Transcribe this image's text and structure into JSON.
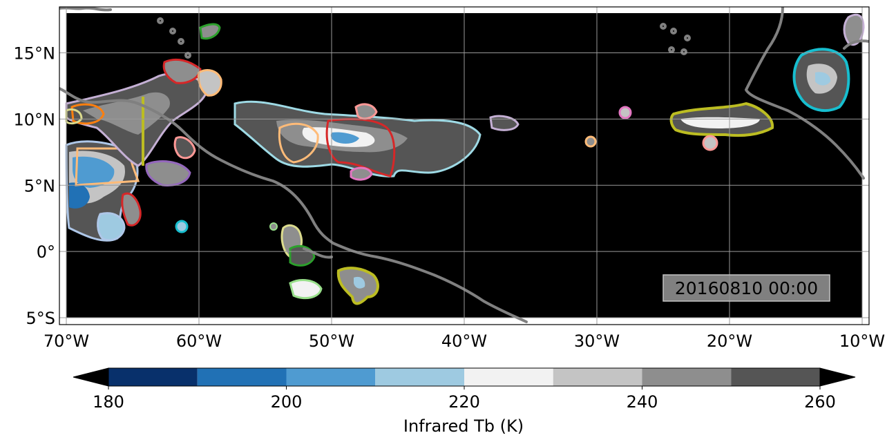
{
  "timestamp": "20160810 00:00",
  "map": {
    "lon_range": [
      -70,
      -10
    ],
    "lat_range": [
      -5,
      18
    ],
    "grid": true,
    "background_color": "#000000",
    "coastline_color": "#808080",
    "x_ticks": [
      {
        "value": -70,
        "label": "70°W"
      },
      {
        "value": -60,
        "label": "60°W"
      },
      {
        "value": -50,
        "label": "50°W"
      },
      {
        "value": -40,
        "label": "40°W"
      },
      {
        "value": -30,
        "label": "30°W"
      },
      {
        "value": -20,
        "label": "20°W"
      },
      {
        "value": -10,
        "label": "10°W"
      }
    ],
    "y_ticks": [
      {
        "value": 15,
        "label": "15°N"
      },
      {
        "value": 10,
        "label": "10°N"
      },
      {
        "value": 5,
        "label": "5°N"
      },
      {
        "value": 0,
        "label": "0°"
      },
      {
        "value": -5,
        "label": "5°S"
      }
    ]
  },
  "colorbar": {
    "label": "Infrared Tb (K)",
    "ticks": [
      {
        "value": 180,
        "label": "180"
      },
      {
        "value": 200,
        "label": "200"
      },
      {
        "value": 220,
        "label": "220"
      },
      {
        "value": 240,
        "label": "240"
      },
      {
        "value": 260,
        "label": "260"
      }
    ],
    "range": [
      180,
      260
    ],
    "bins": [
      {
        "from": 180,
        "to": 190,
        "color": "#08306b"
      },
      {
        "from": 190,
        "to": 200,
        "color": "#2171b5"
      },
      {
        "from": 200,
        "to": 210,
        "color": "#4f9bd1"
      },
      {
        "from": 210,
        "to": 220,
        "color": "#9ecae1"
      },
      {
        "from": 220,
        "to": 230,
        "color": "#f2f2f2"
      },
      {
        "from": 230,
        "to": 240,
        "color": "#c4c4c4"
      },
      {
        "from": 240,
        "to": 250,
        "color": "#8e8e8e"
      },
      {
        "from": 250,
        "to": 260,
        "color": "#555555"
      }
    ],
    "under_color": "#000000",
    "over_color": "#000000"
  }
}
